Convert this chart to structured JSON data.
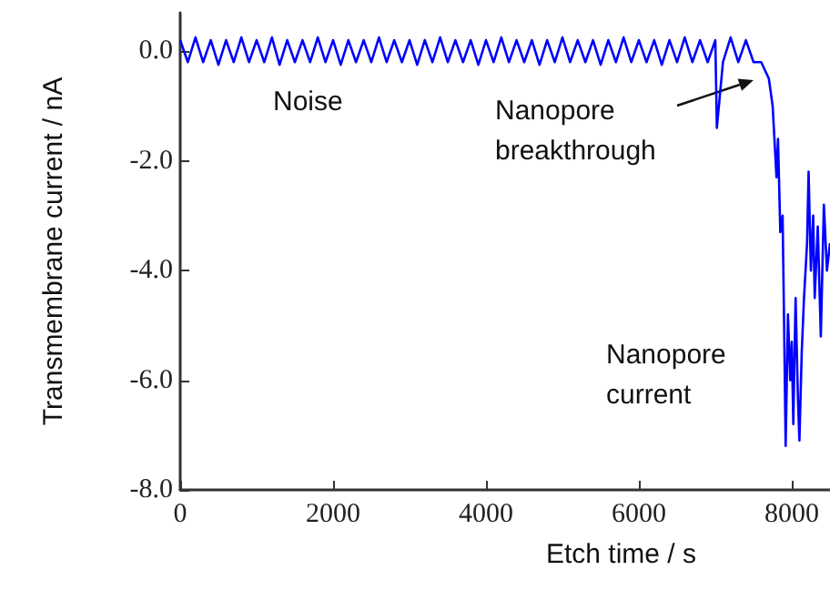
{
  "chart_data": {
    "type": "line",
    "xlabel": "Etch time / s",
    "ylabel": "Transmembrane current / nA",
    "xlim": [
      0,
      8500
    ],
    "ylim": [
      -8,
      0.7
    ],
    "xticks": [
      0,
      2000,
      4000,
      6000,
      8000
    ],
    "yticks": [
      {
        "value": 0,
        "label": "0.0"
      },
      {
        "value": -2,
        "label": "-2.0"
      },
      {
        "value": -4,
        "label": "-4.0"
      },
      {
        "value": -6,
        "label": "-6.0"
      },
      {
        "value": -8,
        "label": "-8.0"
      }
    ],
    "grid": false,
    "marker": "none",
    "line_style": "solid",
    "annotations": [
      "Noise",
      "Nanopore breakthrough",
      "Nanopore current"
    ],
    "series": [
      {
        "color": "#0000ff",
        "x": [
          0,
          100,
          200,
          300,
          400,
          500,
          600,
          700,
          800,
          900,
          1000,
          1100,
          1200,
          1300,
          1400,
          1500,
          1600,
          1700,
          1800,
          1900,
          2000,
          2100,
          2200,
          2300,
          2400,
          2500,
          2600,
          2700,
          2800,
          2900,
          3000,
          3100,
          3200,
          3300,
          3400,
          3500,
          3600,
          3700,
          3800,
          3900,
          4000,
          4100,
          4200,
          4300,
          4400,
          4500,
          4600,
          4700,
          4800,
          4900,
          5000,
          5100,
          5200,
          5300,
          5400,
          5500,
          5600,
          5700,
          5800,
          5900,
          6000,
          6100,
          6200,
          6300,
          6400,
          6500,
          6600,
          6700,
          6800,
          6900,
          7000,
          7020,
          7100,
          7200,
          7300,
          7400,
          7500,
          7600,
          7700,
          7750,
          7800,
          7820,
          7850,
          7880,
          7900,
          7920,
          7950,
          7980,
          8000,
          8020,
          8050,
          8080,
          8100,
          8130,
          8160,
          8200,
          8220,
          8250,
          8280,
          8300,
          8340,
          8380,
          8420,
          8460,
          8500
        ],
        "values": [
          0.2,
          -0.2,
          0.25,
          -0.2,
          0.2,
          -0.25,
          0.2,
          -0.2,
          0.25,
          -0.2,
          0.2,
          -0.2,
          0.25,
          -0.25,
          0.2,
          -0.2,
          0.2,
          -0.2,
          0.25,
          -0.2,
          0.2,
          -0.25,
          0.2,
          -0.2,
          0.2,
          -0.2,
          0.25,
          -0.2,
          0.2,
          -0.2,
          0.2,
          -0.25,
          0.2,
          -0.2,
          0.25,
          -0.2,
          0.2,
          -0.2,
          0.2,
          -0.25,
          0.2,
          -0.2,
          0.25,
          -0.2,
          0.2,
          -0.2,
          0.2,
          -0.25,
          0.2,
          -0.2,
          0.25,
          -0.2,
          0.2,
          -0.2,
          0.2,
          -0.25,
          0.2,
          -0.2,
          0.25,
          -0.2,
          0.2,
          -0.2,
          0.2,
          -0.25,
          0.2,
          -0.2,
          0.25,
          -0.2,
          0.2,
          -0.2,
          0.2,
          -1.4,
          -0.2,
          0.25,
          -0.2,
          0.2,
          -0.2,
          -0.2,
          -0.5,
          -1.0,
          -2.3,
          -1.6,
          -3.3,
          -3.0,
          -5.0,
          -7.2,
          -4.8,
          -6.0,
          -5.3,
          -6.8,
          -4.5,
          -6.3,
          -7.1,
          -5.5,
          -4.5,
          -3.5,
          -2.2,
          -4.0,
          -3.0,
          -4.5,
          -3.2,
          -5.2,
          -2.8,
          -4.0,
          -3.5
        ]
      }
    ]
  }
}
